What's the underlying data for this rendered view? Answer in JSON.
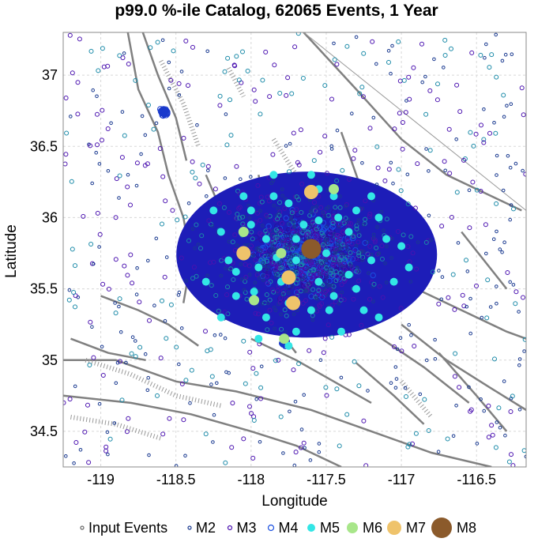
{
  "chart_data": {
    "type": "scatter",
    "title": "p99.0 %-ile Catalog, 62065 Events, 1 Year",
    "xlabel": "Longitude",
    "ylabel": "Latitude",
    "xlim": [
      -119.25,
      -116.17
    ],
    "ylim": [
      34.25,
      37.3
    ],
    "x_ticks": [
      -119,
      -118.5,
      -118,
      -117.5,
      -117,
      -116.5
    ],
    "x_tick_labels": [
      "-119",
      "-118.5",
      "-118",
      "-117.5",
      "-117",
      "-116.5"
    ],
    "y_ticks": [
      34.5,
      35,
      35.5,
      36,
      36.5,
      37
    ],
    "y_tick_labels": [
      "34.5",
      "35",
      "35.5",
      "36",
      "36.5",
      "37"
    ],
    "grid": true,
    "legend_position": "bottom",
    "legend": [
      "Input Events",
      "M2",
      "M3",
      "M4",
      "M5",
      "M6",
      "M7",
      "M8"
    ],
    "series": [
      {
        "name": "M5",
        "color": "#33e6e6",
        "points": [
          [
            -118.2,
            35.9
          ],
          [
            -118.0,
            36.05
          ],
          [
            -117.85,
            36.15
          ],
          [
            -117.75,
            36.1
          ],
          [
            -117.55,
            36.2
          ],
          [
            -117.45,
            36.15
          ],
          [
            -117.3,
            36.05
          ],
          [
            -117.15,
            36.0
          ],
          [
            -118.15,
            35.7
          ],
          [
            -117.95,
            35.65
          ],
          [
            -117.8,
            35.55
          ],
          [
            -117.7,
            35.7
          ],
          [
            -117.5,
            35.75
          ],
          [
            -117.35,
            35.6
          ],
          [
            -117.2,
            35.7
          ],
          [
            -117.05,
            35.55
          ],
          [
            -118.1,
            35.45
          ],
          [
            -117.9,
            35.3
          ],
          [
            -117.75,
            35.4
          ],
          [
            -117.6,
            35.35
          ],
          [
            -117.45,
            35.45
          ],
          [
            -117.25,
            35.35
          ],
          [
            -117.95,
            35.15
          ],
          [
            -117.75,
            35.1
          ],
          [
            -117.4,
            35.2
          ],
          [
            -117.15,
            35.3
          ],
          [
            -116.95,
            35.65
          ],
          [
            -118.3,
            35.55
          ],
          [
            -118.05,
            36.15
          ],
          [
            -117.65,
            35.95
          ],
          [
            -117.55,
            35.55
          ],
          [
            -117.9,
            35.85
          ],
          [
            -117.35,
            35.9
          ],
          [
            -117.1,
            35.85
          ],
          [
            -118.2,
            35.3
          ],
          [
            -117.85,
            36.3
          ],
          [
            -117.6,
            36.3
          ],
          [
            -117.0,
            35.8
          ],
          [
            -118.0,
            35.95
          ],
          [
            -117.3,
            35.5
          ],
          [
            -117.7,
            35.2
          ],
          [
            -117.98,
            35.48
          ],
          [
            -117.42,
            36.0
          ],
          [
            -118.25,
            36.05
          ],
          [
            -117.2,
            36.15
          ],
          [
            -117.7,
            35.85
          ],
          [
            -117.55,
            35.98
          ],
          [
            -117.83,
            35.72
          ],
          [
            -117.48,
            35.35
          ],
          [
            -118.1,
            35.62
          ]
        ]
      },
      {
        "name": "M6",
        "color": "#a8e68a",
        "points": [
          [
            -118.05,
            35.9
          ],
          [
            -117.8,
            35.75
          ],
          [
            -117.45,
            36.2
          ],
          [
            -117.98,
            35.42
          ],
          [
            -117.78,
            35.15
          ]
        ]
      },
      {
        "name": "M7",
        "color": "#efc36b",
        "points": [
          [
            -118.05,
            35.75
          ],
          [
            -117.75,
            35.58
          ],
          [
            -117.6,
            36.18
          ],
          [
            -117.72,
            35.4
          ]
        ]
      },
      {
        "name": "M8",
        "color": "#8b5a2b",
        "points": [
          [
            -117.6,
            35.78
          ]
        ]
      }
    ],
    "fault_color": "#808080"
  }
}
